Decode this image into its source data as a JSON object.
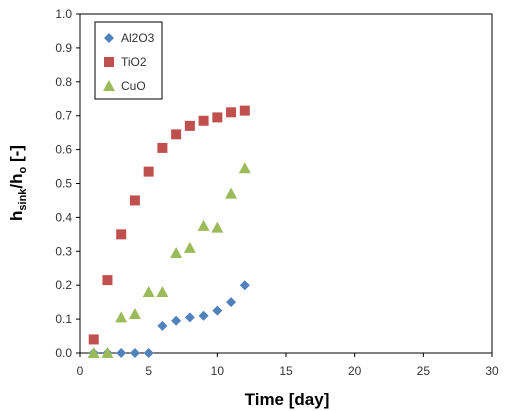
{
  "chart_data": {
    "type": "scatter",
    "xlabel": "Time [day]",
    "ylabel": {
      "main": "h",
      "sub1": "sink",
      "mid": "/h",
      "sub2": "o",
      "tail": " [-]"
    },
    "xlim": [
      0,
      30
    ],
    "ylim": [
      0,
      1.0
    ],
    "xticks": [
      0,
      5,
      10,
      15,
      20,
      25,
      30
    ],
    "yticks": [
      0.0,
      0.1,
      0.2,
      0.3,
      0.4,
      0.5,
      0.6,
      0.7,
      0.8,
      0.9,
      1.0
    ],
    "ytick_decimals": 1,
    "grid": false,
    "legend": "top-left",
    "series": [
      {
        "name": "Al2O3",
        "marker": "diamond",
        "color": "#4F81BD",
        "x": [
          1,
          2,
          3,
          4,
          5,
          6,
          7,
          8,
          9,
          10,
          11,
          12
        ],
        "y": [
          0.0,
          0.0,
          0.0,
          0.0,
          0.0,
          0.08,
          0.095,
          0.105,
          0.11,
          0.125,
          0.15,
          0.2
        ]
      },
      {
        "name": "TiO2",
        "marker": "square",
        "color": "#C0504D",
        "x": [
          1,
          2,
          3,
          4,
          5,
          6,
          7,
          8,
          9,
          10,
          11,
          12
        ],
        "y": [
          0.04,
          0.215,
          0.35,
          0.45,
          0.535,
          0.605,
          0.645,
          0.67,
          0.685,
          0.695,
          0.71,
          0.715
        ]
      },
      {
        "name": "CuO",
        "marker": "triangle",
        "color": "#9BBB59",
        "x": [
          1,
          2,
          3,
          4,
          5,
          6,
          7,
          8,
          9,
          10,
          11,
          12
        ],
        "y": [
          0.0,
          0.0,
          0.105,
          0.115,
          0.18,
          0.18,
          0.295,
          0.31,
          0.375,
          0.37,
          0.47,
          0.545
        ]
      }
    ]
  }
}
